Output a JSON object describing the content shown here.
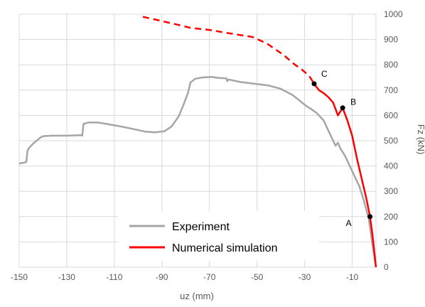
{
  "chart_data": {
    "type": "line",
    "title": "",
    "xlabel": "uz (mm)",
    "ylabel": "Fz (kN)",
    "xlim": [
      -150,
      0
    ],
    "ylim": [
      0,
      1000
    ],
    "x_ticks": [
      -150,
      -130,
      -110,
      -90,
      -70,
      -50,
      -30,
      -10
    ],
    "y_ticks": [
      0,
      100,
      200,
      300,
      400,
      500,
      600,
      700,
      800,
      900,
      1000
    ],
    "grid": "vertical-and-horizontal",
    "legend_position": "bottom-center",
    "colors": {
      "experiment": "#a6a6a6",
      "simulation": "#ff0000"
    },
    "series": [
      {
        "name": "Experiment",
        "color": "#a6a6a6",
        "style": "solid",
        "points": [
          [
            -150,
            410
          ],
          [
            -148.5,
            412
          ],
          [
            -147,
            416
          ],
          [
            -146.5,
            460
          ],
          [
            -146,
            470
          ],
          [
            -144,
            490
          ],
          [
            -142,
            505
          ],
          [
            -141,
            513
          ],
          [
            -140,
            518
          ],
          [
            -136,
            520
          ],
          [
            -130,
            520
          ],
          [
            -124,
            522
          ],
          [
            -123.5,
            520
          ],
          [
            -123,
            566
          ],
          [
            -121,
            572
          ],
          [
            -117,
            572
          ],
          [
            -113,
            566
          ],
          [
            -107,
            556
          ],
          [
            -101,
            544
          ],
          [
            -97,
            536
          ],
          [
            -93,
            533
          ],
          [
            -89,
            537
          ],
          [
            -86,
            556
          ],
          [
            -83,
            595
          ],
          [
            -81,
            640
          ],
          [
            -79,
            690
          ],
          [
            -78,
            730
          ],
          [
            -76,
            745
          ],
          [
            -73,
            750
          ],
          [
            -69,
            752
          ],
          [
            -66,
            748
          ],
          [
            -63,
            747
          ],
          [
            -62.5,
            735
          ],
          [
            -62,
            742
          ],
          [
            -57,
            732
          ],
          [
            -51,
            725
          ],
          [
            -45,
            718
          ],
          [
            -40,
            705
          ],
          [
            -35,
            680
          ],
          [
            -31,
            650
          ],
          [
            -29,
            635
          ],
          [
            -28,
            630
          ],
          [
            -25,
            610
          ],
          [
            -22,
            580
          ],
          [
            -20,
            540
          ],
          [
            -18,
            500
          ],
          [
            -17,
            480
          ],
          [
            -16,
            492
          ],
          [
            -15,
            470
          ],
          [
            -13,
            440
          ],
          [
            -10,
            380
          ],
          [
            -7,
            320
          ],
          [
            -5,
            260
          ],
          [
            -3,
            190
          ],
          [
            -1.5,
            90
          ],
          [
            0,
            0
          ]
        ]
      },
      {
        "name": "Numerical simulation",
        "color": "#ff0000",
        "style": "solid-after-C-dashed-before",
        "points": [
          [
            -98,
            990
          ],
          [
            -91,
            975
          ],
          [
            -85,
            962
          ],
          [
            -78,
            946
          ],
          [
            -70,
            938
          ],
          [
            -62,
            925
          ],
          [
            -52,
            910
          ],
          [
            -46,
            885
          ],
          [
            -39,
            840
          ],
          [
            -34,
            800
          ],
          [
            -31,
            780
          ],
          [
            -28,
            755
          ],
          [
            -26,
            725
          ],
          [
            -24,
            700
          ],
          [
            -22,
            688
          ],
          [
            -20,
            672
          ],
          [
            -18,
            650
          ],
          [
            -16,
            600
          ],
          [
            -15,
            615
          ],
          [
            -14,
            630
          ],
          [
            -12,
            580
          ],
          [
            -10,
            520
          ],
          [
            -8,
            430
          ],
          [
            -6,
            350
          ],
          [
            -4,
            270
          ],
          [
            -2.5,
            200
          ],
          [
            -1.5,
            130
          ],
          [
            0,
            0
          ]
        ],
        "dashed_until_x": -27
      }
    ],
    "markers": [
      {
        "label": "A",
        "x": -2.5,
        "y": 200
      },
      {
        "label": "B",
        "x": -14,
        "y": 630
      },
      {
        "label": "C",
        "x": -26,
        "y": 725
      }
    ]
  }
}
